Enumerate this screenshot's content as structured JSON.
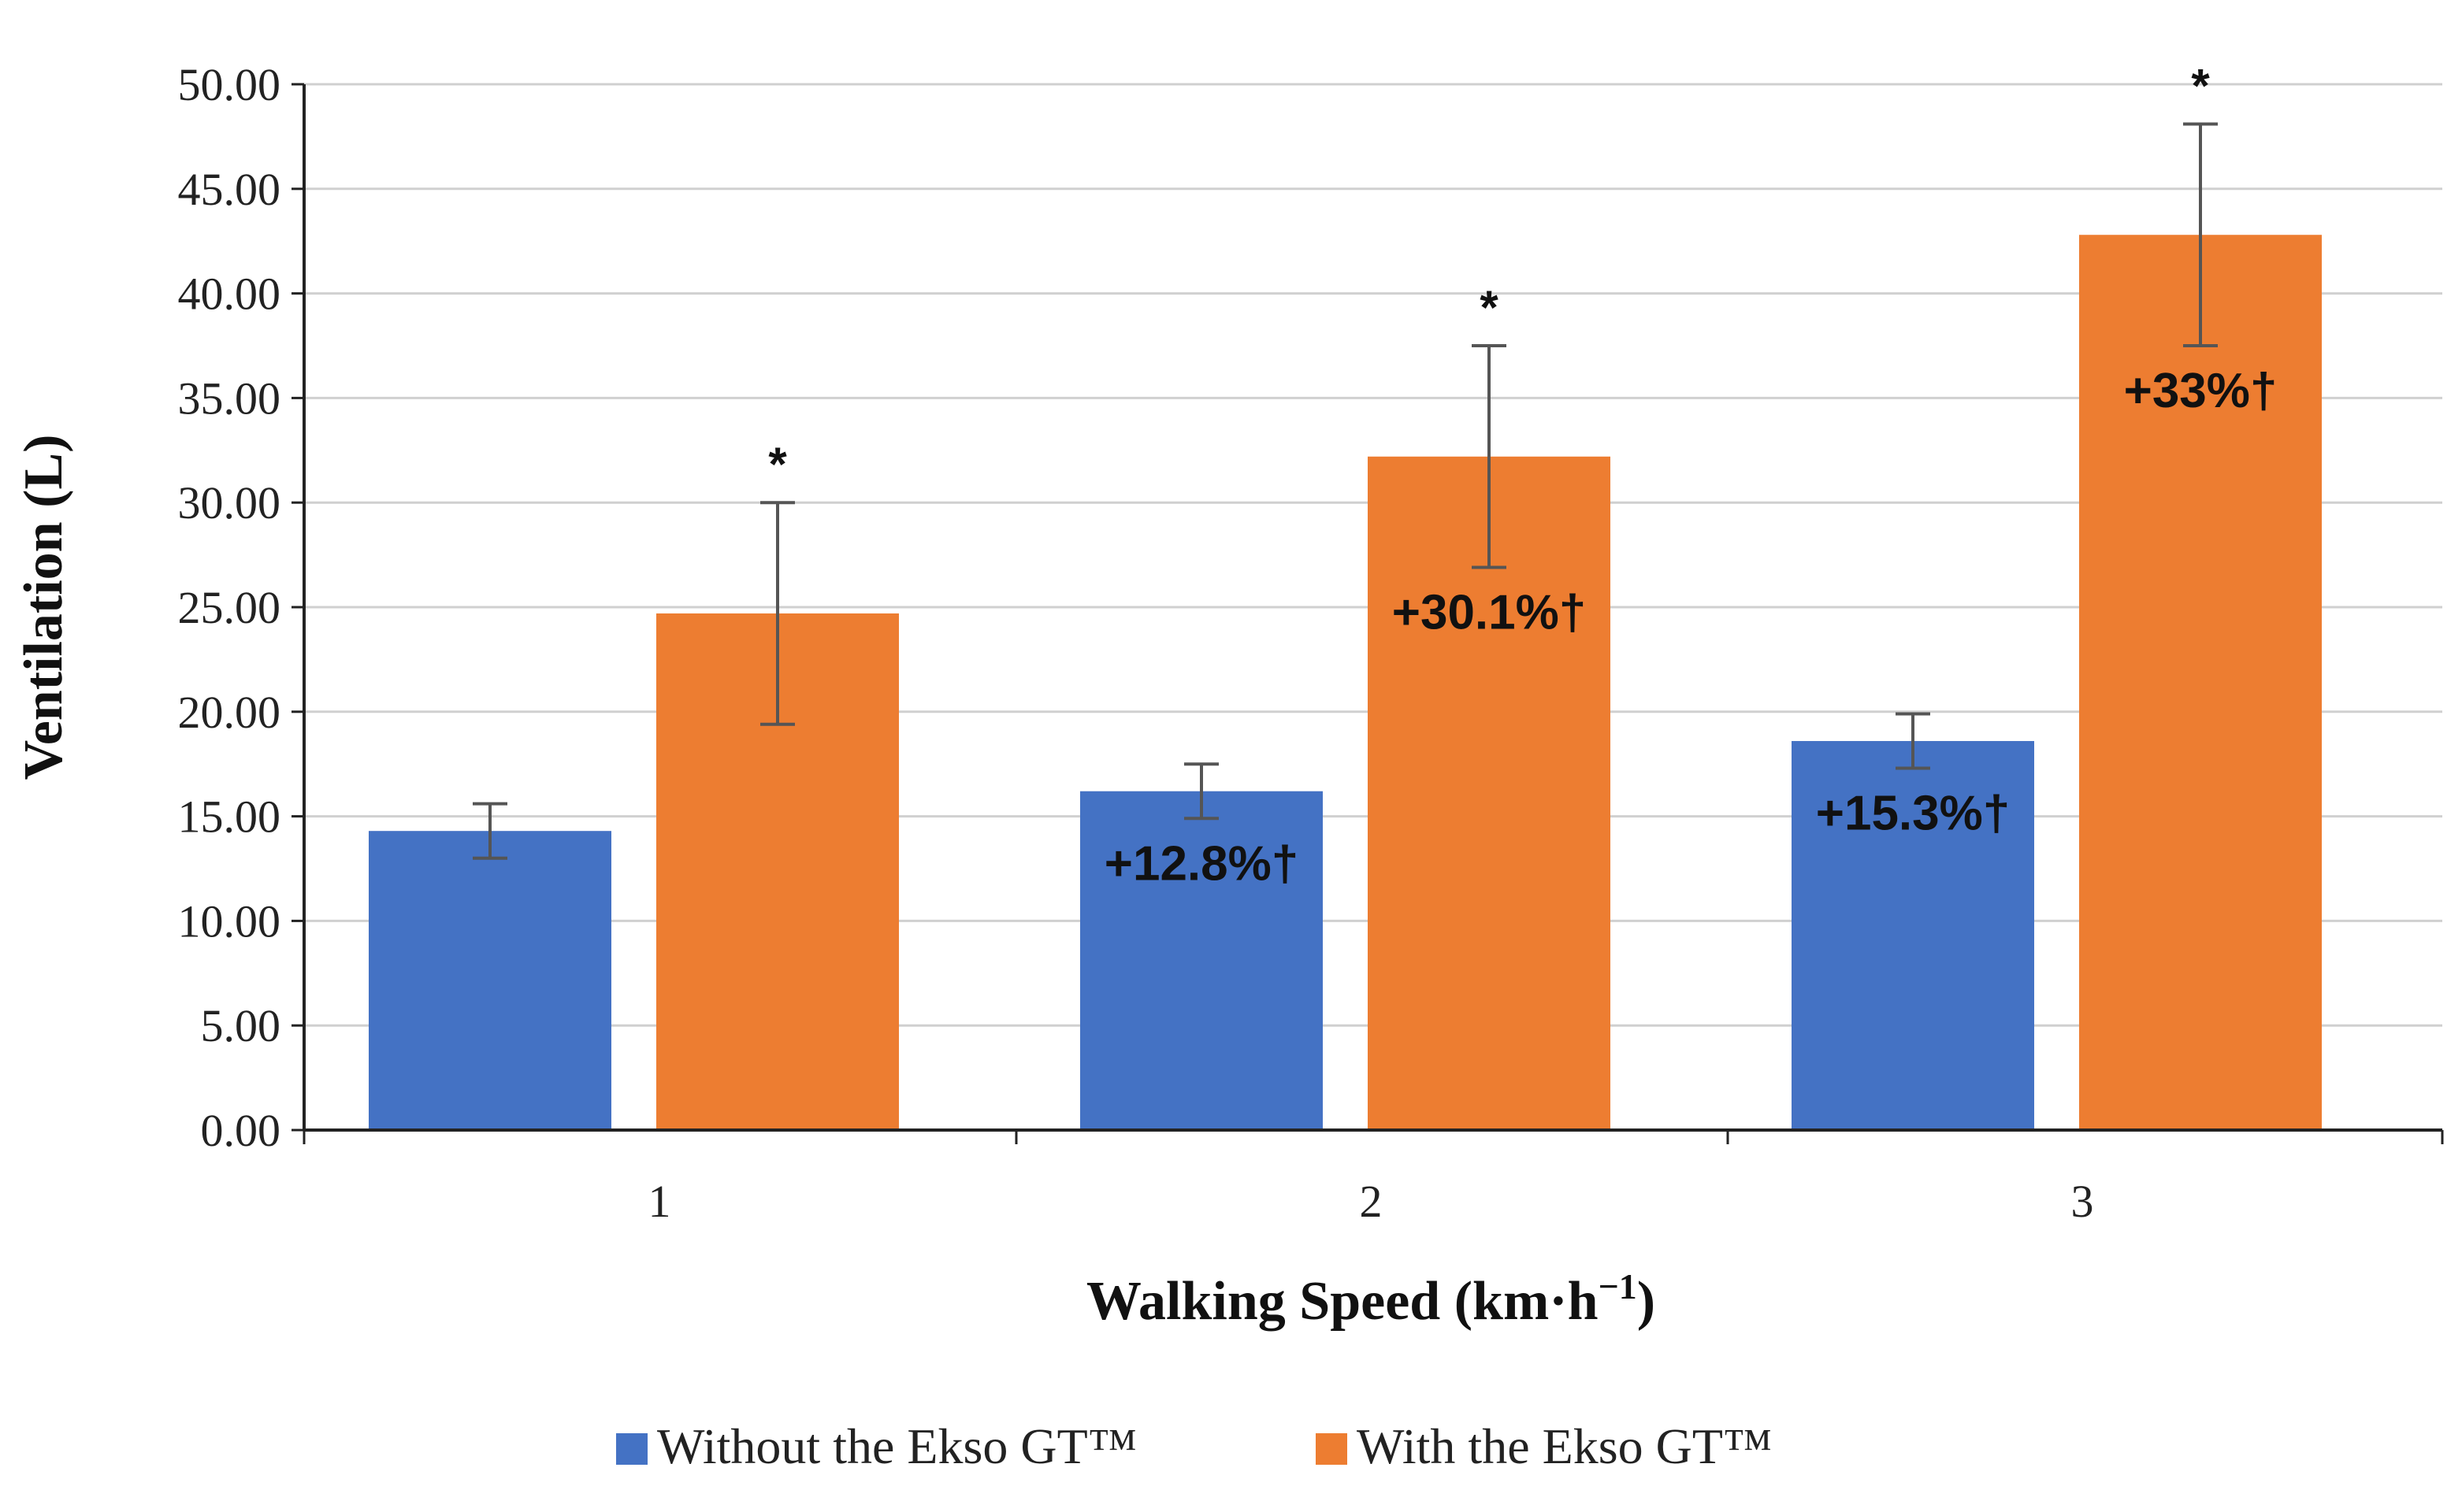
{
  "chart_data": {
    "type": "bar",
    "title": "",
    "xlabel": "Walking Speed (km·h",
    "xlabel_superscript": "−1",
    "xlabel_suffix": ")",
    "ylabel": "Ventilation (L)",
    "ylim": [
      0,
      50
    ],
    "ytick_step": 5,
    "ytick_labels": [
      "0.00",
      "5.00",
      "10.00",
      "15.00",
      "20.00",
      "25.00",
      "30.00",
      "35.00",
      "40.00",
      "45.00",
      "50.00"
    ],
    "grid": true,
    "categories": [
      "1",
      "2",
      "3"
    ],
    "series": [
      {
        "name": "Without the Ekso GT™",
        "color": "#4472C4",
        "values": [
          14.3,
          16.2,
          18.6
        ],
        "error": [
          1.3,
          1.3,
          1.3
        ],
        "annotations": [
          "",
          "+12.8%†",
          "+15.3%†"
        ]
      },
      {
        "name": "With the Ekso GT™",
        "color": "#ED7D31",
        "values": [
          24.7,
          32.2,
          42.8
        ],
        "error": [
          5.3,
          5.3,
          5.3
        ],
        "annotations": [
          "",
          "+30.1%†",
          "+33%†"
        ],
        "significance": [
          "*",
          "*",
          "*"
        ]
      }
    ],
    "legend_position": "bottom"
  }
}
